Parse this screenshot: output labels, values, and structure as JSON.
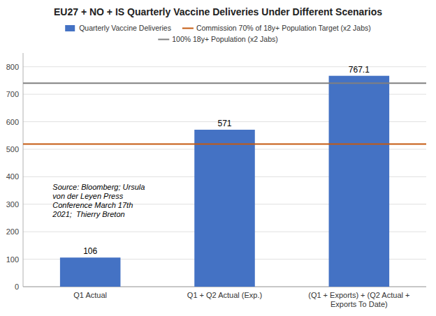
{
  "chart_data": {
    "type": "bar",
    "title": "EU27 + NO + IS Quarterly Vaccine Deliveries Under Different Scenarios",
    "categories": [
      "Q1 Actual",
      "Q1 + Q2 Actual (Exp.)",
      "(Q1 + Exports) + (Q2 Actual + Exports To Date)"
    ],
    "series": [
      {
        "name": "Quarterly Vaccine Deliveries",
        "color": "#4472C4",
        "values": [
          106,
          571,
          767.1
        ]
      }
    ],
    "reference_lines": [
      {
        "name": "Commission 70% of 18y+ Population Target (x2 Jabs)",
        "value": 519,
        "color": "#C55A11"
      },
      {
        "name": "100% 18y+ Population (x2 Jabs)",
        "value": 740,
        "color": "#808080"
      }
    ],
    "annotation": "Source: Bloomberg; Ursula\nvon der Leyen Press\nConference March 17th\n2021;  Thierry Breton",
    "ylim": [
      0,
      850
    ],
    "yticks": [
      0,
      100,
      200,
      300,
      400,
      500,
      600,
      700,
      800
    ],
    "grid": true,
    "legend": "top",
    "data_labels": true
  }
}
